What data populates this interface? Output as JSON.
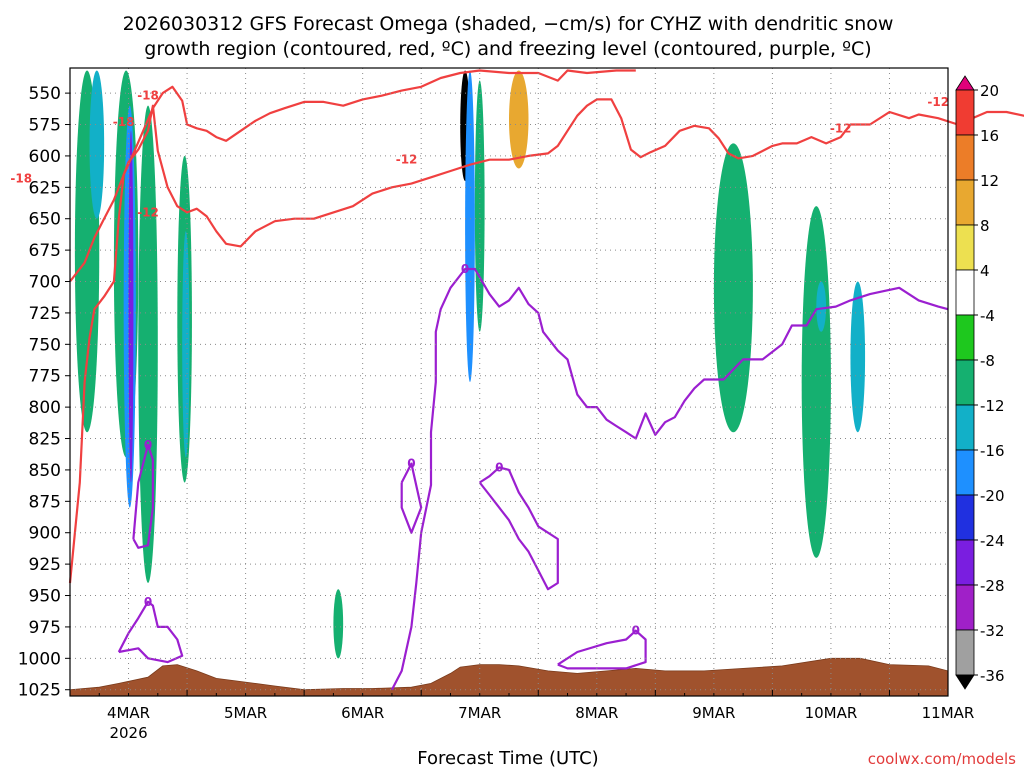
{
  "chart_data": {
    "type": "heatmap",
    "title_line1": "2026030312 GFS Forecast Omega (shaded, −cm/s) for CYHZ with dendritic snow",
    "title_line2": "growth region (contoured, red, ºC) and freezing level (contoured, purple, ºC)",
    "xlabel": "Forecast Time (UTC)",
    "ylabel": "",
    "credit": "coolwx.com/models",
    "x_ticks": [
      "4MAR",
      "5MAR",
      "6MAR",
      "7MAR",
      "8MAR",
      "9MAR",
      "10MAR",
      "11MAR"
    ],
    "x_year_label": "2026",
    "xlim_hours": [
      -12,
      168
    ],
    "y_ticks": [
      550,
      575,
      600,
      625,
      650,
      675,
      700,
      725,
      750,
      775,
      800,
      825,
      850,
      875,
      900,
      925,
      950,
      975,
      1000,
      1025
    ],
    "ylim_hpa": [
      530,
      1030
    ],
    "colorbar_levels": [
      20,
      16,
      12,
      8,
      4,
      -4,
      -8,
      -12,
      -16,
      -20,
      -24,
      -28,
      -32,
      -36
    ],
    "colorbar_colors": [
      "#e0007a",
      "#f03c32",
      "#ec7d28",
      "#e8a830",
      "#ede050",
      "#ffffff",
      "#1ec81e",
      "#15b070",
      "#12b0c8",
      "#1e90ff",
      "#2030e0",
      "#7a1ee0",
      "#a020c8",
      "#a0a0a0",
      "#000000"
    ],
    "dgz_contours": [
      {
        "label": "-18",
        "label_positions": [
          [
            4,
            552
          ],
          [
            -1,
            573
          ],
          [
            -22,
            618
          ]
        ],
        "points": [
          [
            -12,
            700
          ],
          [
            -9,
            685
          ],
          [
            -7,
            665
          ],
          [
            -5,
            650
          ],
          [
            -3,
            635
          ],
          [
            -1,
            615
          ],
          [
            1,
            598
          ],
          [
            3,
            580
          ],
          [
            5,
            562
          ],
          [
            7,
            550
          ],
          [
            9,
            545
          ],
          [
            11,
            556
          ],
          [
            12,
            575
          ],
          [
            14,
            578
          ],
          [
            16,
            580
          ],
          [
            18,
            585
          ],
          [
            20,
            588
          ],
          [
            23,
            580
          ],
          [
            26,
            572
          ],
          [
            29,
            566
          ],
          [
            32,
            562
          ],
          [
            36,
            557
          ],
          [
            40,
            557
          ],
          [
            44,
            560
          ],
          [
            48,
            555
          ],
          [
            52,
            552
          ],
          [
            56,
            548
          ],
          [
            60,
            545
          ],
          [
            64,
            538
          ],
          [
            68,
            534
          ],
          [
            72,
            532
          ],
          [
            78,
            534
          ],
          [
            84,
            534
          ],
          [
            88,
            540
          ],
          [
            90,
            532
          ],
          [
            94,
            534
          ],
          [
            100,
            532
          ],
          [
            104,
            532
          ]
        ]
      },
      {
        "label": "-12",
        "label_positions": [
          [
            4,
            645
          ],
          [
            57,
            603
          ],
          [
            146,
            578
          ],
          [
            166,
            557
          ]
        ],
        "points": [
          [
            -12,
            940
          ],
          [
            -10,
            860
          ],
          [
            -9,
            780
          ],
          [
            -8,
            745
          ],
          [
            -7,
            722
          ],
          [
            -5,
            712
          ],
          [
            -3,
            700
          ],
          [
            -2,
            650
          ],
          [
            -1,
            615
          ],
          [
            0,
            605
          ],
          [
            2,
            595
          ],
          [
            4,
            580
          ],
          [
            5,
            560
          ],
          [
            6,
            596
          ],
          [
            8,
            625
          ],
          [
            10,
            640
          ],
          [
            12,
            645
          ],
          [
            14,
            642
          ],
          [
            16,
            648
          ],
          [
            18,
            660
          ],
          [
            20,
            670
          ],
          [
            23,
            672
          ],
          [
            26,
            660
          ],
          [
            30,
            652
          ],
          [
            34,
            650
          ],
          [
            38,
            650
          ],
          [
            42,
            645
          ],
          [
            46,
            640
          ],
          [
            50,
            630
          ],
          [
            54,
            625
          ],
          [
            58,
            622
          ],
          [
            62,
            617
          ],
          [
            66,
            612
          ],
          [
            70,
            607
          ],
          [
            74,
            603
          ],
          [
            78,
            603
          ],
          [
            82,
            600
          ],
          [
            86,
            598
          ],
          [
            88,
            592
          ],
          [
            90,
            580
          ],
          [
            92,
            568
          ],
          [
            94,
            560
          ],
          [
            96,
            555
          ],
          [
            99,
            555
          ],
          [
            101,
            570
          ],
          [
            103,
            595
          ],
          [
            105,
            601
          ],
          [
            107,
            597
          ],
          [
            110,
            592
          ],
          [
            113,
            580
          ],
          [
            116,
            576
          ],
          [
            119,
            578
          ],
          [
            121,
            586
          ],
          [
            123,
            598
          ],
          [
            125,
            602
          ],
          [
            128,
            600
          ],
          [
            132,
            592
          ],
          [
            134,
            590
          ],
          [
            137,
            590
          ],
          [
            140,
            585
          ],
          [
            143,
            590
          ],
          [
            146,
            585
          ],
          [
            148,
            575
          ],
          [
            152,
            575
          ],
          [
            156,
            565
          ],
          [
            160,
            570
          ],
          [
            162,
            567
          ],
          [
            166,
            570
          ],
          [
            170,
            575
          ],
          [
            176,
            565
          ],
          [
            180,
            565
          ],
          [
            186,
            570
          ],
          [
            190,
            562
          ],
          [
            194,
            570
          ],
          [
            198,
            580
          ],
          [
            201,
            580
          ],
          [
            203,
            572
          ],
          [
            206,
            577
          ],
          [
            209,
            592
          ],
          [
            212,
            592
          ],
          [
            216,
            588
          ],
          [
            219,
            572
          ],
          [
            222,
            574
          ],
          [
            224,
            586
          ]
        ]
      }
    ],
    "freezing_contours": [
      {
        "label": "0",
        "points": [
          [
            1,
            905
          ],
          [
            2,
            860
          ],
          [
            4,
            830
          ],
          [
            5,
            842
          ],
          [
            5,
            880
          ],
          [
            4,
            910
          ],
          [
            2,
            912
          ],
          [
            1,
            905
          ]
        ]
      },
      {
        "label": "0",
        "points": [
          [
            -2,
            995
          ],
          [
            0,
            980
          ],
          [
            2,
            968
          ],
          [
            4,
            955
          ],
          [
            5,
            958
          ],
          [
            6,
            975
          ],
          [
            8,
            975
          ],
          [
            10,
            985
          ],
          [
            11,
            998
          ],
          [
            8,
            1003
          ],
          [
            4,
            1000
          ],
          [
            2,
            992
          ],
          [
            -2,
            995
          ]
        ]
      },
      {
        "label": "0",
        "points": [
          [
            54,
            1025
          ],
          [
            56,
            1010
          ],
          [
            58,
            975
          ],
          [
            59,
            940
          ],
          [
            60,
            900
          ],
          [
            62,
            862
          ],
          [
            62,
            820
          ],
          [
            63,
            780
          ],
          [
            63,
            740
          ],
          [
            64,
            722
          ],
          [
            66,
            705
          ],
          [
            69,
            690
          ],
          [
            71,
            690
          ],
          [
            74,
            710
          ],
          [
            76,
            720
          ],
          [
            78,
            715
          ],
          [
            80,
            705
          ],
          [
            82,
            718
          ],
          [
            84,
            725
          ],
          [
            85,
            740
          ],
          [
            88,
            755
          ],
          [
            90,
            762
          ],
          [
            92,
            790
          ],
          [
            94,
            800
          ],
          [
            96,
            800
          ],
          [
            98,
            810
          ],
          [
            100,
            815
          ],
          [
            102,
            820
          ],
          [
            104,
            825
          ],
          [
            106,
            805
          ],
          [
            108,
            822
          ],
          [
            110,
            812
          ],
          [
            112,
            808
          ],
          [
            114,
            795
          ],
          [
            116,
            785
          ],
          [
            118,
            778
          ],
          [
            122,
            778
          ],
          [
            124,
            770
          ],
          [
            126,
            762
          ],
          [
            130,
            762
          ],
          [
            134,
            750
          ],
          [
            136,
            735
          ],
          [
            139,
            735
          ],
          [
            141,
            722
          ],
          [
            145,
            720
          ],
          [
            148,
            715
          ],
          [
            152,
            710
          ],
          [
            158,
            705
          ],
          [
            162,
            715
          ],
          [
            166,
            720
          ],
          [
            168,
            722
          ]
        ]
      },
      {
        "label": "0",
        "points": [
          [
            56,
            860
          ],
          [
            58,
            845
          ],
          [
            60,
            880
          ],
          [
            58,
            900
          ],
          [
            56,
            880
          ],
          [
            56,
            860
          ]
        ]
      },
      {
        "label": "0",
        "points": [
          [
            72,
            860
          ],
          [
            74,
            870
          ],
          [
            76,
            880
          ],
          [
            78,
            890
          ],
          [
            80,
            905
          ],
          [
            82,
            915
          ],
          [
            84,
            930
          ],
          [
            86,
            945
          ],
          [
            88,
            940
          ],
          [
            88,
            905
          ],
          [
            84,
            895
          ],
          [
            82,
            880
          ],
          [
            80,
            868
          ],
          [
            78,
            850
          ],
          [
            76,
            848
          ],
          [
            74,
            855
          ],
          [
            72,
            860
          ]
        ]
      },
      {
        "label": "0",
        "points": [
          [
            88,
            1005
          ],
          [
            92,
            995
          ],
          [
            98,
            988
          ],
          [
            102,
            985
          ],
          [
            104,
            978
          ],
          [
            106,
            985
          ],
          [
            106,
            1003
          ],
          [
            102,
            1008
          ],
          [
            96,
            1008
          ],
          [
            90,
            1008
          ],
          [
            88,
            1005
          ]
        ]
      }
    ],
    "terrain_pressure_hpa": [
      [
        -12,
        1025
      ],
      [
        -6,
        1023
      ],
      [
        -2,
        1020
      ],
      [
        4,
        1015
      ],
      [
        7,
        1006
      ],
      [
        10,
        1005
      ],
      [
        14,
        1010
      ],
      [
        18,
        1016
      ],
      [
        22,
        1018
      ],
      [
        26,
        1020
      ],
      [
        30,
        1022
      ],
      [
        36,
        1025
      ],
      [
        44,
        1024
      ],
      [
        50,
        1024
      ],
      [
        58,
        1023
      ],
      [
        62,
        1020
      ],
      [
        66,
        1012
      ],
      [
        68,
        1007
      ],
      [
        72,
        1005
      ],
      [
        76,
        1005
      ],
      [
        80,
        1006
      ],
      [
        86,
        1010
      ],
      [
        92,
        1012
      ],
      [
        98,
        1010
      ],
      [
        104,
        1008
      ],
      [
        110,
        1010
      ],
      [
        118,
        1010
      ],
      [
        126,
        1008
      ],
      [
        134,
        1006
      ],
      [
        144,
        1000
      ],
      [
        150,
        1000
      ],
      [
        156,
        1005
      ],
      [
        164,
        1006
      ],
      [
        168,
        1010
      ]
    ],
    "omega_regions": [
      {
        "x": [
          -11,
          -6
        ],
        "p": [
          532,
          820
        ],
        "value": -8
      },
      {
        "x": [
          -8,
          -5
        ],
        "p": [
          532,
          650
        ],
        "value": -12
      },
      {
        "x": [
          -3,
          2
        ],
        "p": [
          532,
          840
        ],
        "value": -8
      },
      {
        "x": [
          -1,
          1.5
        ],
        "p": [
          560,
          880
        ],
        "value": -16
      },
      {
        "x": [
          0,
          1
        ],
        "p": [
          580,
          860
        ],
        "value": -24
      },
      {
        "x": [
          2,
          6
        ],
        "p": [
          560,
          940
        ],
        "value": -8
      },
      {
        "x": [
          10,
          13
        ],
        "p": [
          600,
          860
        ],
        "value": -8
      },
      {
        "x": [
          11,
          12.5
        ],
        "p": [
          660,
          840
        ],
        "value": -12
      },
      {
        "x": [
          42,
          44
        ],
        "p": [
          945,
          1000
        ],
        "value": -8
      },
      {
        "x": [
          62,
          64
        ],
        "p": [
          532,
          700
        ],
        "value": 4
      },
      {
        "x": [
          68,
          70
        ],
        "p": [
          532,
          620
        ],
        "value": -36
      },
      {
        "x": [
          69,
          71
        ],
        "p": [
          532,
          780
        ],
        "value": -16
      },
      {
        "x": [
          71,
          73
        ],
        "p": [
          540,
          740
        ],
        "value": -8
      },
      {
        "x": [
          78,
          82
        ],
        "p": [
          532,
          610
        ],
        "value": 12
      },
      {
        "x": [
          120,
          128
        ],
        "p": [
          590,
          820
        ],
        "value": -8
      },
      {
        "x": [
          138,
          144
        ],
        "p": [
          640,
          920
        ],
        "value": -8
      },
      {
        "x": [
          141,
          143
        ],
        "p": [
          700,
          740
        ],
        "value": -12
      },
      {
        "x": [
          148,
          151
        ],
        "p": [
          700,
          820
        ],
        "value": -12
      }
    ]
  }
}
